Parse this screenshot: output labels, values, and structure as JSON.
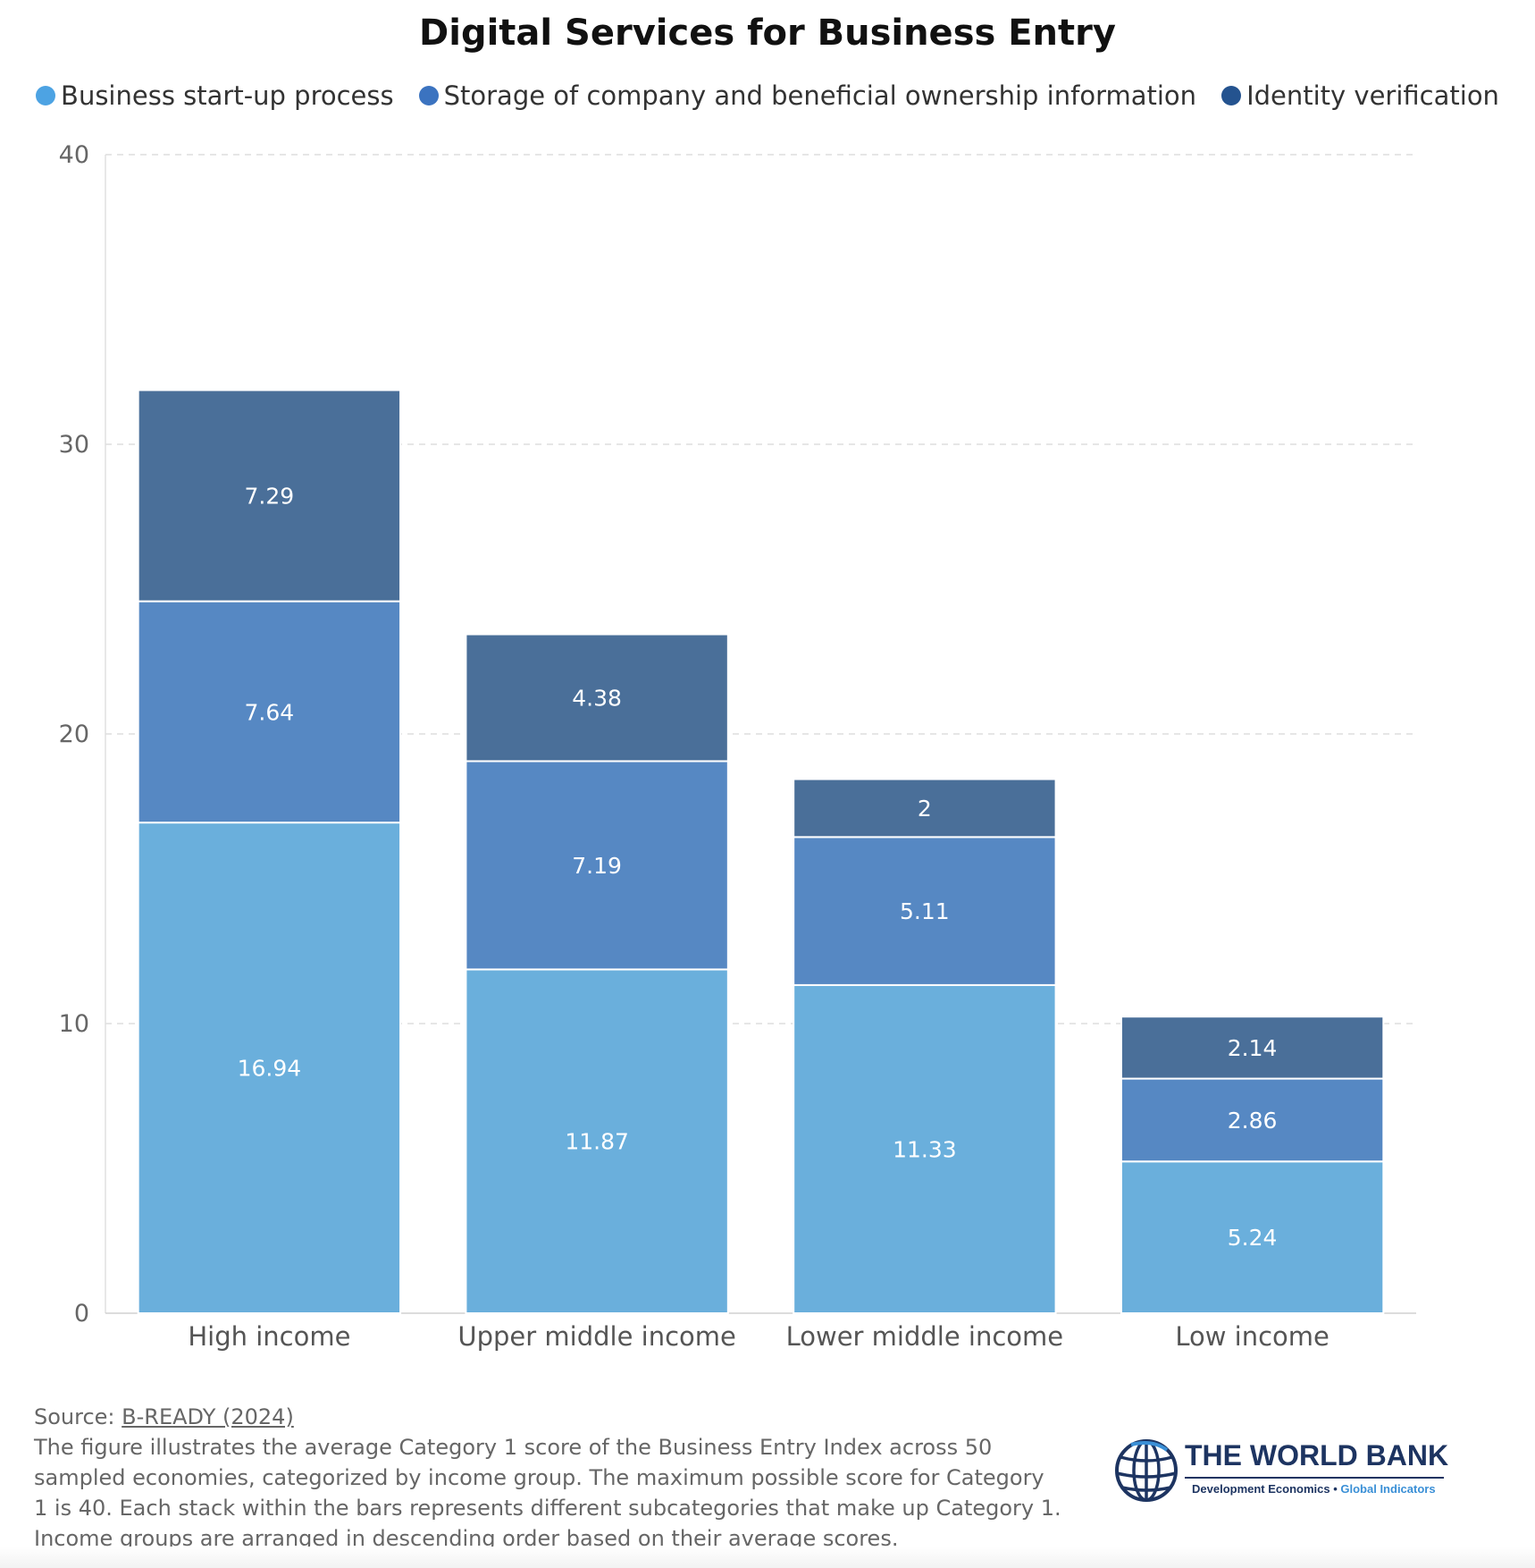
{
  "chart_data": {
    "type": "bar",
    "stacked": true,
    "title": "Digital Services for Business Entry",
    "categories": [
      "High income",
      "Upper middle income",
      "Lower middle income",
      "Low income"
    ],
    "series": [
      {
        "name": "Business start-up process",
        "values": [
          16.94,
          11.87,
          11.33,
          5.24
        ],
        "color": "#6aafdc",
        "legend_color": "#4da3e3"
      },
      {
        "name": "Storage of company and beneficial ownership information",
        "values": [
          7.64,
          7.19,
          5.11,
          2.86
        ],
        "color": "#5688c3",
        "legend_color": "#3b73c0"
      },
      {
        "name": "Identity verification",
        "values": [
          7.29,
          4.38,
          2,
          2.14
        ],
        "color": "#4a6f99",
        "legend_color": "#24538f"
      }
    ],
    "yticks": [
      0,
      10,
      20,
      30,
      40
    ],
    "ylim": [
      0,
      40
    ],
    "grid": "horizontal dashed",
    "legend_position": "top-center"
  },
  "footer": {
    "source_prefix": "Source: ",
    "source_link": "B-READY (2024)",
    "note": "The figure illustrates the average Category 1 score of the Business Entry Index across 50 sampled economies, categorized by income group. The maximum possible score for Category 1 is 40. Each stack within the bars represents different subcategories that make up Category 1. Income groups are arranged in descending order based on their average scores."
  },
  "logo": {
    "name": "THE WORLD BANK",
    "sub_main": "Development Economics",
    "sub_sep": " • ",
    "sub_accent": "Global Indicators",
    "icon": "globe-icon"
  }
}
